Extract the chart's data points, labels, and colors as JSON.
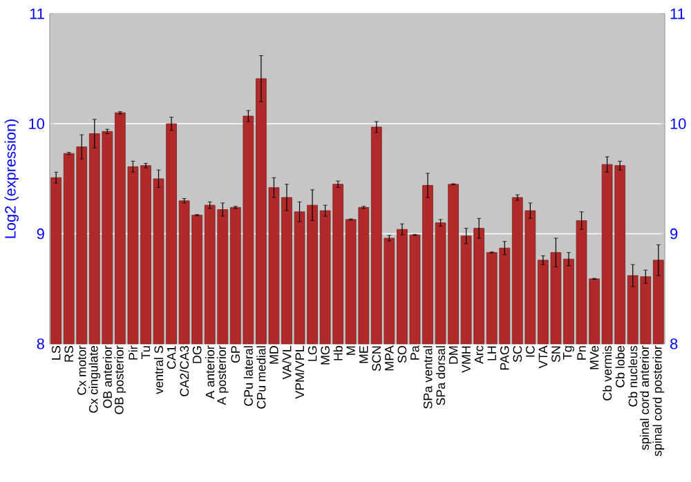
{
  "chart_data": {
    "type": "bar",
    "ylabel": "Log2 (expression)",
    "categories": [
      "LS",
      "RS",
      "Cx motor",
      "Cx cingulate",
      "OB anterior",
      "OB posterior",
      "Pir",
      "Tu",
      "ventral S",
      "CA1",
      "CA2/CA3",
      "DG",
      "A anterior",
      "A posterior",
      "GP",
      "CPu lateral",
      "CPu medial",
      "MD",
      "VA/VL",
      "VPM/VPL",
      "LG",
      "MG",
      "Hb",
      "M",
      "ME",
      "SCN",
      "MPA",
      "SO",
      "Pa",
      "SPa ventral",
      "SPa dorsal",
      "DM",
      "VMH",
      "Arc",
      "LH",
      "PAG",
      "SC",
      "IC",
      "VTA",
      "SN",
      "Tg",
      "Pn",
      "MVe",
      "Cb vermis",
      "Cb lobe",
      "Cb nucleus",
      "spinal cord anterior",
      "spinal cord posterior"
    ],
    "values": [
      9.51,
      9.73,
      9.79,
      9.91,
      9.93,
      10.1,
      9.61,
      9.62,
      9.5,
      10.0,
      9.3,
      9.17,
      9.26,
      9.22,
      9.24,
      10.07,
      10.41,
      9.42,
      9.33,
      9.2,
      9.26,
      9.21,
      9.45,
      9.13,
      9.24,
      9.97,
      8.96,
      9.04,
      8.99,
      9.44,
      9.1,
      9.45,
      8.98,
      9.05,
      8.83,
      8.87,
      9.33,
      9.21,
      8.76,
      8.83,
      8.77,
      9.12,
      8.59,
      9.63,
      9.62,
      8.62,
      8.61,
      8.76
    ],
    "errors": [
      0.05,
      0.01,
      0.11,
      0.13,
      0.02,
      0.01,
      0.05,
      0.02,
      0.08,
      0.06,
      0.02,
      0.005,
      0.03,
      0.06,
      0.01,
      0.05,
      0.21,
      0.09,
      0.12,
      0.09,
      0.14,
      0.05,
      0.03,
      0.005,
      0.01,
      0.05,
      0.025,
      0.05,
      0.005,
      0.11,
      0.03,
      0.005,
      0.07,
      0.09,
      0.005,
      0.06,
      0.025,
      0.07,
      0.04,
      0.13,
      0.06,
      0.08,
      0.005,
      0.07,
      0.04,
      0.1,
      0.06,
      0.14
    ],
    "color": "#b02a2a",
    "ylim": [
      8,
      11
    ],
    "yticks": [
      8,
      9,
      10,
      11
    ],
    "y2lim": [
      8,
      11
    ],
    "y2ticks": [
      8,
      9,
      10,
      11
    ],
    "grid": "y"
  }
}
